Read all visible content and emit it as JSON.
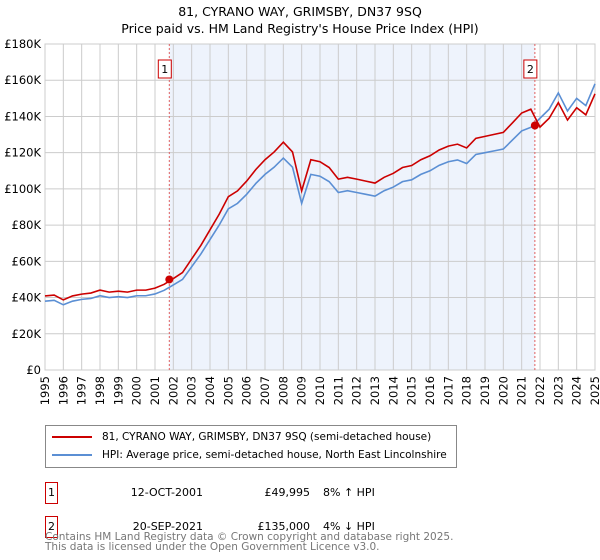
{
  "chart_data": {
    "type": "line",
    "title": "81, CYRANO WAY, GRIMSBY, DN37 9SQ",
    "subtitle": "Price paid vs. HM Land Registry's House Price Index (HPI)",
    "ylim": [
      0,
      180000
    ],
    "xlim": [
      1995,
      2025
    ],
    "yticks": [
      {
        "v": 0,
        "label": "£0"
      },
      {
        "v": 20000,
        "label": "£20K"
      },
      {
        "v": 40000,
        "label": "£40K"
      },
      {
        "v": 60000,
        "label": "£60K"
      },
      {
        "v": 80000,
        "label": "£80K"
      },
      {
        "v": 100000,
        "label": "£100K"
      },
      {
        "v": 120000,
        "label": "£120K"
      },
      {
        "v": 140000,
        "label": "£140K"
      },
      {
        "v": 160000,
        "label": "£160K"
      },
      {
        "v": 180000,
        "label": "£180K"
      }
    ],
    "xticks": [
      "1995",
      "1996",
      "1997",
      "1998",
      "1999",
      "2000",
      "2001",
      "2002",
      "2003",
      "2004",
      "2005",
      "2006",
      "2007",
      "2008",
      "2009",
      "2010",
      "2011",
      "2012",
      "2013",
      "2014",
      "2015",
      "2016",
      "2017",
      "2018",
      "2019",
      "2020",
      "2021",
      "2022",
      "2023",
      "2024",
      "2025"
    ],
    "grid": true,
    "shaded_range": [
      2001.78,
      2021.72
    ],
    "x": [
      1995,
      1995.5,
      1996,
      1996.5,
      1997,
      1997.5,
      1998,
      1998.5,
      1999,
      1999.5,
      2000,
      2000.5,
      2001,
      2001.5,
      2002,
      2002.5,
      2003,
      2003.5,
      2004,
      2004.5,
      2005,
      2005.5,
      2006,
      2006.5,
      2007,
      2007.5,
      2008,
      2008.5,
      2009,
      2009.5,
      2010,
      2010.5,
      2011,
      2011.5,
      2012,
      2012.5,
      2013,
      2013.5,
      2014,
      2014.5,
      2015,
      2015.5,
      2016,
      2016.5,
      2017,
      2017.5,
      2018,
      2018.5,
      2019,
      2019.5,
      2020,
      2020.5,
      2021,
      2021.5,
      2022,
      2022.5,
      2023,
      2023.5,
      2024,
      2024.5,
      2025
    ],
    "series": [
      {
        "name": "81, CYRANO WAY, GRIMSBY, DN37 9SQ (semi-detached house)",
        "color": "#cc0000",
        "values": [
          40900,
          41400,
          38700,
          40900,
          41900,
          42500,
          44100,
          43000,
          43500,
          43000,
          44100,
          44100,
          45200,
          47300,
          50500,
          53800,
          61300,
          68800,
          77400,
          86000,
          95700,
          98900,
          104300,
          110700,
          116100,
          120400,
          125800,
          120400,
          98900,
          116100,
          115000,
          111800,
          105400,
          106400,
          105400,
          104300,
          103200,
          106400,
          108600,
          111800,
          112900,
          116100,
          118300,
          121500,
          123600,
          124700,
          122600,
          127900,
          129000,
          130100,
          131200,
          136500,
          141900,
          144000,
          134100,
          139000,
          147600,
          138000,
          144800,
          140900,
          152500
        ]
      },
      {
        "name": "HPI: Average price, semi-detached house, North East Lincolnshire",
        "color": "#5b8fd4",
        "values": [
          38000,
          38500,
          36000,
          38000,
          39000,
          39500,
          41000,
          40000,
          40500,
          40000,
          41000,
          41000,
          42000,
          44000,
          47000,
          50000,
          57000,
          64000,
          72000,
          80000,
          89000,
          92000,
          97000,
          103000,
          108000,
          112000,
          117000,
          112000,
          92000,
          108000,
          107000,
          104000,
          98000,
          99000,
          98000,
          97000,
          96000,
          99000,
          101000,
          104000,
          105000,
          108000,
          110000,
          113000,
          115000,
          116000,
          114000,
          119000,
          120000,
          121000,
          122000,
          127000,
          132000,
          134000,
          139000,
          144000,
          153000,
          143000,
          150000,
          146000,
          158000
        ]
      }
    ],
    "sales": [
      {
        "id": "1",
        "x": 2001.78,
        "y": 49995
      },
      {
        "id": "2",
        "x": 2021.72,
        "y": 135000
      }
    ]
  },
  "legend": {
    "property": "81, CYRANO WAY, GRIMSBY, DN37 9SQ (semi-detached house)",
    "hpi": "HPI: Average price, semi-detached house, North East Lincolnshire"
  },
  "transactions": [
    {
      "id": "1",
      "date": "12-OCT-2001",
      "price": "£49,995",
      "hpi": "8% ↑ HPI"
    },
    {
      "id": "2",
      "date": "20-SEP-2021",
      "price": "£135,000",
      "hpi": "4% ↓ HPI"
    }
  ],
  "footer": {
    "line1": "Contains HM Land Registry data © Crown copyright and database right 2025.",
    "line2": "This data is licensed under the Open Government Licence v3.0."
  }
}
